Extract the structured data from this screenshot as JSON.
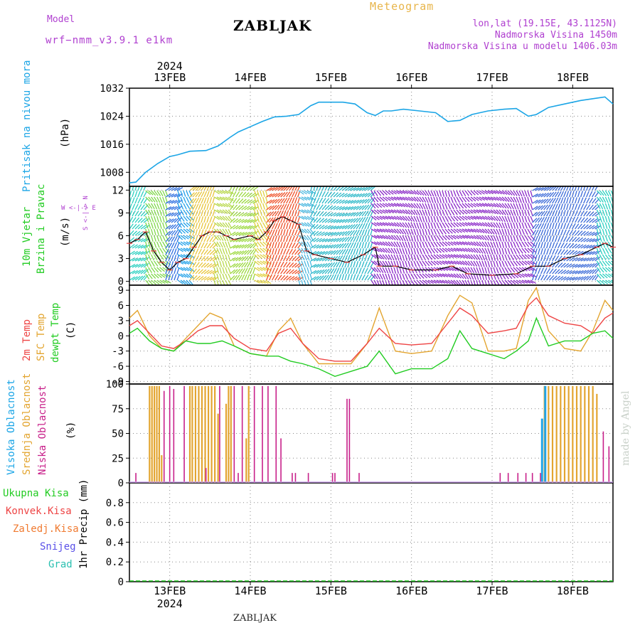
{
  "header": {
    "model_label": "Model",
    "model_name": "wrf−nmm_v3.9.1  e1km",
    "station": "ZABLJAK",
    "product": "Meteogram",
    "coords": "lon,lat (19.15E, 43.1125N)",
    "altitude": "Nadmorska Visina 1450m",
    "model_altitude": "Nadmorska Visina u modelu 1406.03m"
  },
  "footer": {
    "station": "ZABLJAK",
    "credit": "made by Angel"
  },
  "colors": {
    "pressure": "#1ba5e6",
    "temp2m": "#ee4444",
    "sfc": "#e3a530",
    "dewpt": "#22cc22",
    "high_cloud": "#22a5e8",
    "mid_cloud": "#e3a530",
    "low_cloud": "#c8208a",
    "label_purple": "#b040d0"
  },
  "chart_data": [
    {
      "type": "line",
      "panel": "pressure",
      "top_labels": [
        "2024",
        "13FEB",
        "14FEB",
        "15FEB",
        "16FEB",
        "17FEB",
        "18FEB"
      ],
      "bottom_labels": [
        "13FEB",
        "14FEB",
        "15FEB",
        "16FEB",
        "17FEB",
        "18FEB",
        "2024"
      ],
      "ylabel_left": "Pritisak na nivou mora",
      "ylabel_unit": "(hPa)",
      "yticks": [
        1008,
        1016,
        1024,
        1032
      ],
      "ylim": [
        1004,
        1032
      ],
      "xlim": [
        12.5,
        18.5
      ],
      "grid": true,
      "series": [
        {
          "x": [
            12.5,
            12.58,
            12.7,
            12.85,
            13.0,
            13.1,
            13.25,
            13.45,
            13.6,
            13.75,
            13.85,
            14.0,
            14.15,
            14.3,
            14.45,
            14.6,
            14.75,
            14.85,
            15.0,
            15.15,
            15.3,
            15.45,
            15.55,
            15.65,
            15.75,
            15.9,
            16.1,
            16.3,
            16.45,
            16.6,
            16.75,
            16.95,
            17.15,
            17.3,
            17.45,
            17.55,
            17.7,
            17.9,
            18.1,
            18.25,
            18.4,
            18.5
          ],
          "values": [
            1005.0,
            1005.2,
            1008.0,
            1010.5,
            1012.5,
            1013.0,
            1014.0,
            1014.2,
            1015.5,
            1018.0,
            1019.5,
            1021.0,
            1022.5,
            1023.8,
            1024.0,
            1024.5,
            1027.0,
            1028.0,
            1028.0,
            1028.0,
            1027.5,
            1025.0,
            1024.2,
            1025.5,
            1025.5,
            1026.0,
            1025.5,
            1025.0,
            1022.5,
            1022.8,
            1024.5,
            1025.5,
            1026.0,
            1026.2,
            1024.0,
            1024.5,
            1026.5,
            1027.5,
            1028.5,
            1029.0,
            1029.5,
            1027.5
          ]
        }
      ]
    },
    {
      "type": "line",
      "panel": "wind",
      "ylabel_left": [
        "10m Vjetar",
        "Brzina i Pravac"
      ],
      "ylabel_unit": "(m/s)",
      "direction_legend": "W <-|-> E   S <-|-> N",
      "yticks": [
        0,
        3,
        6,
        9,
        12
      ],
      "ylim": [
        -0.5,
        12.5
      ],
      "xlim": [
        12.5,
        18.5
      ],
      "grid": true,
      "series": [
        {
          "name": "speed",
          "x": [
            12.5,
            12.6,
            12.7,
            12.8,
            12.9,
            13.0,
            13.1,
            13.2,
            13.3,
            13.4,
            13.5,
            13.6,
            13.7,
            13.8,
            14.0,
            14.1,
            14.2,
            14.3,
            14.4,
            14.5,
            14.6,
            14.7,
            14.8,
            15.0,
            15.2,
            15.4,
            15.55,
            15.6,
            15.8,
            16.0,
            16.3,
            16.5,
            16.7,
            17.0,
            17.3,
            17.5,
            17.7,
            17.9,
            18.1,
            18.3,
            18.4,
            18.5
          ],
          "values": [
            5.0,
            5.5,
            6.5,
            4.0,
            2.5,
            1.5,
            2.5,
            3.0,
            4.5,
            6.0,
            6.5,
            6.5,
            6.0,
            5.5,
            6.0,
            5.5,
            6.5,
            8.0,
            8.5,
            8.0,
            7.5,
            4.0,
            3.5,
            3.0,
            2.5,
            3.5,
            4.5,
            2.0,
            2.0,
            1.5,
            1.5,
            2.0,
            1.0,
            0.8,
            1.0,
            2.0,
            2.0,
            3.0,
            3.5,
            4.5,
            5.0,
            4.5
          ]
        }
      ]
    },
    {
      "type": "line",
      "panel": "temperature",
      "ylabel_left": [
        "2m Temp",
        "SFC Temp",
        "dewpt Temp"
      ],
      "ylabel_unit": "(C)",
      "yticks": [
        -9,
        -6,
        -3,
        0,
        3,
        6,
        9
      ],
      "ylim": [
        -9.5,
        10
      ],
      "xlim": [
        12.5,
        18.5
      ],
      "grid": true,
      "series": [
        {
          "name": "2m Temp",
          "x": [
            12.5,
            12.6,
            12.75,
            12.9,
            13.05,
            13.2,
            13.35,
            13.5,
            13.65,
            13.8,
            14.0,
            14.2,
            14.35,
            14.5,
            14.65,
            14.85,
            15.05,
            15.25,
            15.45,
            15.6,
            15.8,
            16.0,
            16.25,
            16.45,
            16.6,
            16.75,
            16.95,
            17.15,
            17.3,
            17.45,
            17.55,
            17.7,
            17.9,
            18.1,
            18.25,
            18.4,
            18.5
          ],
          "values": [
            2.0,
            3.0,
            0.5,
            -2.0,
            -2.5,
            -1.0,
            1.0,
            2.0,
            2.0,
            -0.5,
            -2.5,
            -3.0,
            0.5,
            1.5,
            -1.5,
            -4.5,
            -5.0,
            -5.0,
            -1.5,
            1.5,
            -1.5,
            -1.8,
            -1.5,
            2.5,
            5.5,
            4.0,
            0.5,
            1.0,
            1.5,
            6.0,
            7.5,
            4.0,
            2.5,
            2.0,
            0.5,
            3.5,
            4.5
          ]
        },
        {
          "name": "SFC Temp",
          "x": [
            12.5,
            12.6,
            12.75,
            12.9,
            13.05,
            13.2,
            13.35,
            13.5,
            13.65,
            13.8,
            14.0,
            14.2,
            14.35,
            14.5,
            14.65,
            14.85,
            15.05,
            15.25,
            15.45,
            15.6,
            15.8,
            16.0,
            16.25,
            16.45,
            16.6,
            16.75,
            16.95,
            17.15,
            17.3,
            17.45,
            17.55,
            17.7,
            17.9,
            18.1,
            18.25,
            18.4,
            18.5
          ],
          "values": [
            3.5,
            5.0,
            0.0,
            -2.5,
            -3.0,
            -0.5,
            2.0,
            4.5,
            3.5,
            -2.0,
            -3.5,
            -4.0,
            1.0,
            3.5,
            -1.5,
            -5.5,
            -5.5,
            -5.5,
            -1.5,
            5.5,
            -3.0,
            -3.5,
            -3.0,
            4.0,
            8.0,
            6.5,
            -3.0,
            -3.0,
            -2.5,
            7.0,
            9.5,
            1.0,
            -2.5,
            -3.0,
            1.0,
            7.0,
            5.0
          ]
        },
        {
          "name": "dewpt Temp",
          "x": [
            12.5,
            12.6,
            12.75,
            12.9,
            13.05,
            13.2,
            13.35,
            13.5,
            13.65,
            13.8,
            14.0,
            14.2,
            14.35,
            14.5,
            14.65,
            14.85,
            15.05,
            15.25,
            15.45,
            15.6,
            15.8,
            16.0,
            16.25,
            16.45,
            16.6,
            16.75,
            16.95,
            17.15,
            17.3,
            17.45,
            17.55,
            17.7,
            17.9,
            18.1,
            18.25,
            18.4,
            18.5
          ],
          "values": [
            0.5,
            1.5,
            -1.0,
            -2.5,
            -3.0,
            -1.0,
            -1.5,
            -1.5,
            -1.0,
            -2.0,
            -3.5,
            -4.0,
            -4.0,
            -5.0,
            -5.5,
            -6.5,
            -8.0,
            -7.0,
            -6.0,
            -3.0,
            -7.5,
            -6.5,
            -6.5,
            -4.5,
            1.0,
            -2.5,
            -3.5,
            -4.5,
            -3.0,
            -1.0,
            3.5,
            -2.0,
            -1.0,
            -1.0,
            0.5,
            1.0,
            -0.5
          ]
        }
      ]
    },
    {
      "type": "bar",
      "panel": "cloud",
      "ylabel_left": [
        "Visoka Oblacnost",
        "Srednja Oblacnost",
        "Niska Oblacnost"
      ],
      "ylabel_unit": "(%)",
      "yticks": [
        0,
        25,
        50,
        75,
        100
      ],
      "ylim": [
        0,
        100
      ],
      "xlim": [
        12.5,
        18.5
      ],
      "grid": true,
      "series": [
        {
          "name": "mid",
          "x": [
            12.75,
            12.78,
            12.81,
            12.84,
            12.87,
            12.9,
            13.25,
            13.28,
            13.32,
            13.36,
            13.4,
            13.44,
            13.48,
            13.52,
            13.56,
            13.6,
            13.7,
            13.73,
            13.76,
            13.95,
            13.98,
            17.65,
            17.7,
            17.75,
            17.8,
            17.85,
            17.9,
            17.95,
            18.0,
            18.05,
            18.1,
            18.15,
            18.2,
            18.25,
            18.3
          ],
          "values": [
            98,
            98,
            98,
            98,
            98,
            28,
            98,
            98,
            98,
            98,
            98,
            98,
            98,
            98,
            98,
            70,
            80,
            98,
            98,
            45,
            98,
            98,
            98,
            98,
            98,
            98,
            98,
            98,
            98,
            98,
            98,
            98,
            98,
            98,
            90
          ]
        },
        {
          "name": "low",
          "x": [
            12.58,
            12.93,
            13.0,
            13.05,
            13.18,
            13.45,
            13.62,
            13.8,
            13.85,
            13.9,
            14.05,
            14.15,
            14.22,
            14.32,
            14.38,
            14.52,
            14.56,
            14.72,
            15.02,
            15.05,
            15.2,
            15.23,
            15.35,
            17.1,
            17.2,
            17.32,
            17.42,
            17.5,
            17.6,
            18.38,
            18.45
          ],
          "values": [
            10,
            93,
            98,
            95,
            98,
            15,
            98,
            98,
            10,
            98,
            98,
            98,
            98,
            98,
            45,
            10,
            10,
            10,
            10,
            10,
            85,
            85,
            10,
            10,
            10,
            10,
            10,
            10,
            10,
            52,
            37
          ]
        },
        {
          "name": "high",
          "x": [
            17.62,
            17.66
          ],
          "values": [
            65,
            98
          ]
        }
      ]
    },
    {
      "type": "line",
      "panel": "precip",
      "ylabel_left": [
        "Ukupna Kisa",
        "Konvek.Kisa",
        "Zaledj.Kisa",
        "Snijeg",
        "Grad"
      ],
      "ylabel_unit": "1hr Precip (mm)",
      "yticks": [
        0,
        0.2,
        0.4,
        0.6,
        0.8
      ],
      "ylim": [
        0,
        1.0
      ],
      "xlim": [
        12.5,
        18.5
      ],
      "grid": true,
      "series": [
        {
          "name": "Ukupna Kisa",
          "x": [
            12.5,
            18.5
          ],
          "values": [
            0,
            0
          ]
        }
      ]
    }
  ],
  "wind_barb_bands": [
    {
      "from": 12.5,
      "to": 12.7,
      "color": "#2ad0c0"
    },
    {
      "from": 12.7,
      "to": 12.95,
      "color": "#7fd84a"
    },
    {
      "from": 12.95,
      "to": 13.1,
      "color": "#2f6fe0"
    },
    {
      "from": 13.1,
      "to": 13.25,
      "color": "#1ea0e8"
    },
    {
      "from": 13.25,
      "to": 13.55,
      "color": "#e8c53a"
    },
    {
      "from": 13.55,
      "to": 13.75,
      "color": "#b8d84a"
    },
    {
      "from": 13.75,
      "to": 14.05,
      "color": "#9ad83c"
    },
    {
      "from": 14.05,
      "to": 14.2,
      "color": "#e0d040"
    },
    {
      "from": 14.2,
      "to": 14.6,
      "color": "#ee5028"
    },
    {
      "from": 14.6,
      "to": 14.75,
      "color": "#4ab8e0"
    },
    {
      "from": 14.75,
      "to": 15.5,
      "color": "#2ab8c8"
    },
    {
      "from": 15.5,
      "to": 17.5,
      "color": "#8a28c8"
    },
    {
      "from": 17.5,
      "to": 18.3,
      "color": "#3a6ad8"
    },
    {
      "from": 18.3,
      "to": 18.5,
      "color": "#2ad0c0"
    }
  ]
}
